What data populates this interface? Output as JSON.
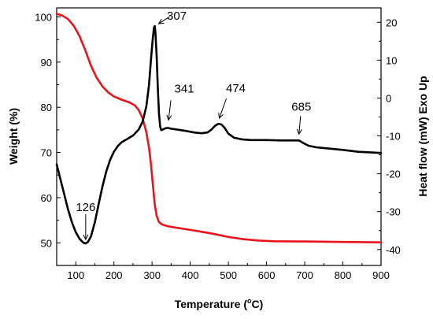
{
  "chart_data": {
    "type": "line",
    "xlabel": "Temperature (",
    "xlabel_sup": "o",
    "xlabel_unit": "C)",
    "ylabel_left": "Weight (%)",
    "ylabel_right": "Heat flow (mW) Exo Up",
    "xlim": [
      50,
      900
    ],
    "ylim_left": [
      45,
      102
    ],
    "ylim_right": [
      -44.2,
      23.8
    ],
    "x_ticks": [
      100,
      200,
      300,
      400,
      500,
      600,
      700,
      800,
      900
    ],
    "y_left_ticks": [
      50,
      60,
      70,
      80,
      90,
      100
    ],
    "y_right_ticks": [
      20,
      10,
      0,
      -10,
      -20,
      -30,
      -40
    ],
    "grid": false,
    "series": [
      {
        "axis": "left",
        "color": "#e8141b",
        "points": [
          [
            50,
            100.7
          ],
          [
            65,
            100.3
          ],
          [
            80,
            99.5
          ],
          [
            95,
            98.0
          ],
          [
            110,
            95.7
          ],
          [
            125,
            92.6
          ],
          [
            140,
            89.2
          ],
          [
            155,
            86.5
          ],
          [
            170,
            84.6
          ],
          [
            185,
            83.3
          ],
          [
            200,
            82.4
          ],
          [
            220,
            81.7
          ],
          [
            240,
            81.1
          ],
          [
            255,
            80.4
          ],
          [
            265,
            79.4
          ],
          [
            275,
            77.6
          ],
          [
            285,
            74.5
          ],
          [
            292,
            71.0
          ],
          [
            297,
            67.5
          ],
          [
            302,
            63.0
          ],
          [
            307,
            58.5
          ],
          [
            312,
            56.0
          ],
          [
            318,
            54.6
          ],
          [
            325,
            54.1
          ],
          [
            340,
            53.7
          ],
          [
            360,
            53.4
          ],
          [
            390,
            53.0
          ],
          [
            420,
            52.6
          ],
          [
            460,
            52.0
          ],
          [
            500,
            51.3
          ],
          [
            540,
            50.8
          ],
          [
            580,
            50.5
          ],
          [
            620,
            50.35
          ],
          [
            700,
            50.3
          ],
          [
            800,
            50.2
          ],
          [
            900,
            50.1
          ]
        ]
      },
      {
        "axis": "right",
        "color": "#000000",
        "points": [
          [
            50,
            -17.5
          ],
          [
            60,
            -21.5
          ],
          [
            70,
            -25.5
          ],
          [
            80,
            -29.5
          ],
          [
            90,
            -32.8
          ],
          [
            100,
            -35.4
          ],
          [
            110,
            -37.2
          ],
          [
            120,
            -38.2
          ],
          [
            126,
            -38.4
          ],
          [
            132,
            -38.0
          ],
          [
            140,
            -36.5
          ],
          [
            150,
            -32.8
          ],
          [
            160,
            -28.0
          ],
          [
            170,
            -23.3
          ],
          [
            180,
            -19.4
          ],
          [
            190,
            -16.3
          ],
          [
            200,
            -14.2
          ],
          [
            210,
            -12.7
          ],
          [
            220,
            -11.7
          ],
          [
            235,
            -10.8
          ],
          [
            250,
            -9.9
          ],
          [
            265,
            -8.3
          ],
          [
            275,
            -6.3
          ],
          [
            285,
            -2.2
          ],
          [
            292,
            3.5
          ],
          [
            297,
            10.0
          ],
          [
            302,
            15.8
          ],
          [
            305,
            18.6
          ],
          [
            307,
            19.0
          ],
          [
            309,
            17.0
          ],
          [
            312,
            11.0
          ],
          [
            315,
            3.0
          ],
          [
            318,
            -4.0
          ],
          [
            321,
            -7.5
          ],
          [
            324,
            -8.5
          ],
          [
            328,
            -8.3
          ],
          [
            335,
            -8.0
          ],
          [
            341,
            -7.9
          ],
          [
            350,
            -8.1
          ],
          [
            370,
            -8.4
          ],
          [
            390,
            -8.7
          ],
          [
            410,
            -9.1
          ],
          [
            430,
            -9.3
          ],
          [
            445,
            -9.1
          ],
          [
            455,
            -8.4
          ],
          [
            465,
            -7.3
          ],
          [
            474,
            -6.8
          ],
          [
            482,
            -7.0
          ],
          [
            490,
            -7.9
          ],
          [
            500,
            -9.4
          ],
          [
            515,
            -10.5
          ],
          [
            535,
            -10.9
          ],
          [
            560,
            -11.1
          ],
          [
            600,
            -11.1
          ],
          [
            640,
            -11.2
          ],
          [
            670,
            -11.2
          ],
          [
            685,
            -11.2
          ],
          [
            695,
            -11.8
          ],
          [
            710,
            -12.6
          ],
          [
            730,
            -13.0
          ],
          [
            760,
            -13.3
          ],
          [
            800,
            -13.7
          ],
          [
            840,
            -14.2
          ],
          [
            880,
            -14.4
          ],
          [
            900,
            -14.5
          ]
        ]
      }
    ],
    "annotations": [
      {
        "label": "307",
        "x": 307,
        "y": 19.0,
        "axis": "right"
      },
      {
        "label": "341",
        "x": 341,
        "y": -7.9,
        "axis": "right"
      },
      {
        "label": "474",
        "x": 474,
        "y": -6.8,
        "axis": "right"
      },
      {
        "label": "685",
        "x": 685,
        "y": -11.2,
        "axis": "right"
      },
      {
        "label": "126",
        "x": 126,
        "y": -38.4,
        "axis": "right"
      }
    ]
  }
}
